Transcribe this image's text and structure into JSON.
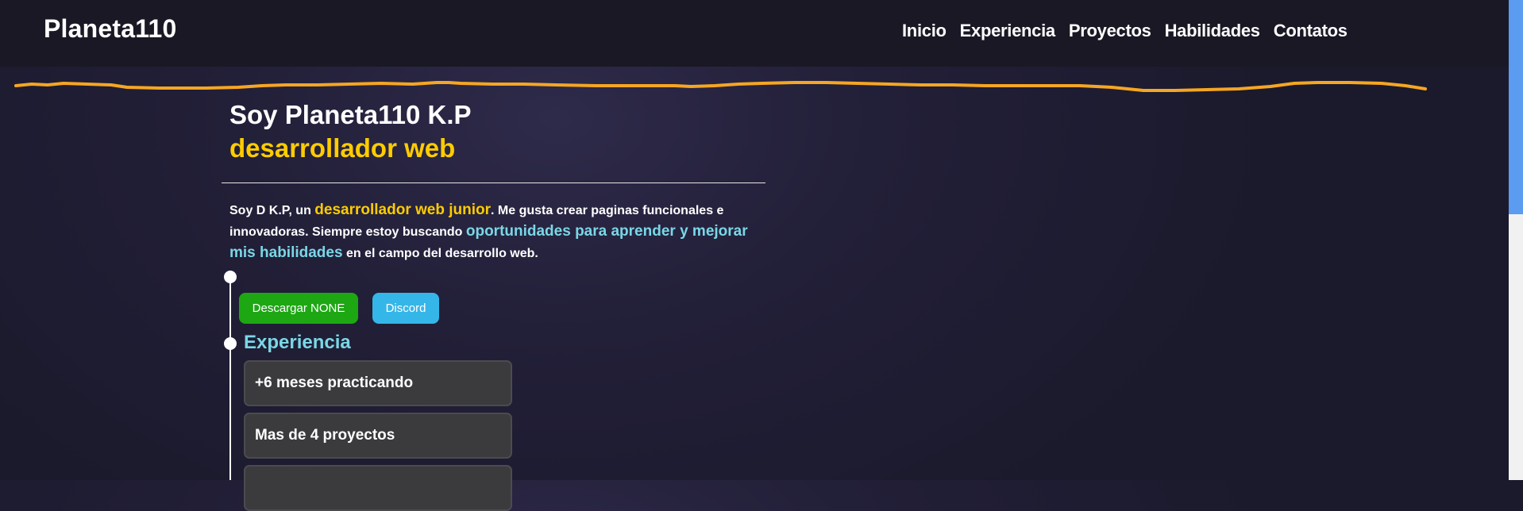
{
  "header": {
    "logo": "Planeta110",
    "nav": [
      "Inicio",
      "Experiencia",
      "Proyectos",
      "Habilidades",
      "Contatos"
    ]
  },
  "hero": {
    "title_line1": "Soy Planeta110 K.P",
    "title_line2": "desarrollador web",
    "intro": {
      "part1": "Soy D K.P, un ",
      "highlight1": "desarrollador web junior",
      "part2": ". Me gusta crear paginas funcionales e innovadoras. Siempre estoy buscando ",
      "highlight2": "oportunidades para aprender y mejorar mis habilidades",
      "part3": " en el campo del desarrollo web."
    }
  },
  "buttons": {
    "download": "Descargar NONE",
    "discord": "Discord"
  },
  "experience": {
    "title": "Experiencia",
    "cards": [
      "+6 meses practicando",
      "Mas de 4 proyectos",
      ""
    ]
  },
  "colors": {
    "accent_yellow": "#ffcc00",
    "accent_cyan": "#7ad7e6",
    "wave_orange": "#f5a623",
    "button_green": "#1da713",
    "button_blue": "#35b6e8"
  }
}
